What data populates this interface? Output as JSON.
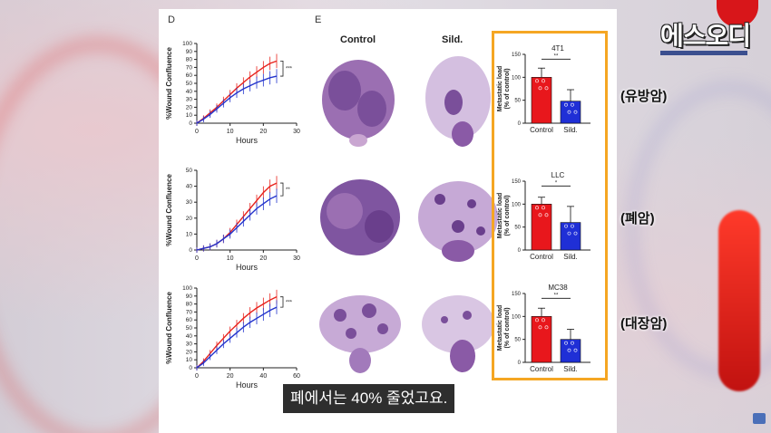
{
  "panels": {
    "d_letter": "D",
    "e_letter": "E"
  },
  "chart_data": [
    {
      "type": "line",
      "name_key": "4T1 wound",
      "xlabel": "Hours",
      "ylabel": "%Wound Confluence",
      "xlim": [
        0,
        30
      ],
      "ylim": [
        0,
        100
      ],
      "xticks": [
        0,
        10,
        20,
        30
      ],
      "yticks": [
        0,
        10,
        20,
        30,
        40,
        50,
        60,
        70,
        80,
        90,
        100
      ],
      "significance": "***",
      "series": [
        {
          "color": "#e8231d",
          "x": [
            0,
            2,
            4,
            6,
            8,
            10,
            12,
            14,
            16,
            18,
            20,
            22,
            24
          ],
          "y": [
            0,
            6,
            13,
            20,
            28,
            36,
            44,
            51,
            58,
            64,
            70,
            75,
            78
          ]
        },
        {
          "color": "#2233cc",
          "x": [
            0,
            2,
            4,
            6,
            8,
            10,
            12,
            14,
            16,
            18,
            20,
            22,
            24
          ],
          "y": [
            0,
            5,
            11,
            18,
            25,
            32,
            38,
            43,
            47,
            51,
            54,
            57,
            59
          ]
        }
      ]
    },
    {
      "type": "line",
      "xlabel": "Hours",
      "ylabel": "%Wound Confluence",
      "xlim": [
        0,
        30
      ],
      "ylim": [
        0,
        50
      ],
      "xticks": [
        0,
        10,
        20,
        30
      ],
      "yticks": [
        0,
        10,
        20,
        30,
        40,
        50
      ],
      "significance": "**",
      "series": [
        {
          "color": "#e8231d",
          "x": [
            0,
            2,
            4,
            6,
            8,
            10,
            12,
            14,
            16,
            18,
            20,
            22,
            24
          ],
          "y": [
            0,
            1,
            2,
            4,
            7,
            11,
            16,
            21,
            26,
            31,
            36,
            40,
            42
          ]
        },
        {
          "color": "#2233cc",
          "x": [
            0,
            2,
            4,
            6,
            8,
            10,
            12,
            14,
            16,
            18,
            20,
            22,
            24
          ],
          "y": [
            0,
            1,
            2,
            4,
            7,
            10,
            14,
            18,
            22,
            26,
            29,
            32,
            34
          ]
        }
      ]
    },
    {
      "type": "line",
      "xlabel": "Hours",
      "ylabel": "%Wound Confluence",
      "xlim": [
        0,
        60
      ],
      "ylim": [
        0,
        100
      ],
      "xticks": [
        0,
        20,
        40,
        60
      ],
      "yticks": [
        0,
        10,
        20,
        30,
        40,
        50,
        60,
        70,
        80,
        90,
        100
      ],
      "significance": "***",
      "series": [
        {
          "color": "#e8231d",
          "x": [
            0,
            4,
            8,
            12,
            16,
            20,
            24,
            28,
            32,
            36,
            40,
            44,
            48
          ],
          "y": [
            0,
            8,
            18,
            28,
            37,
            46,
            54,
            62,
            69,
            75,
            80,
            85,
            89
          ]
        },
        {
          "color": "#2233cc",
          "x": [
            0,
            4,
            8,
            12,
            16,
            20,
            24,
            28,
            32,
            36,
            40,
            44,
            48
          ],
          "y": [
            0,
            6,
            14,
            22,
            30,
            37,
            44,
            51,
            57,
            62,
            67,
            72,
            76
          ]
        }
      ]
    },
    {
      "type": "bar",
      "title": "4T1",
      "ylabel": "Metastatic load\n(% of control)",
      "categories": [
        "Control",
        "Sild."
      ],
      "values": [
        100,
        48
      ],
      "errors": [
        20,
        25
      ],
      "colors": [
        "#e8171c",
        "#1f2fd6"
      ],
      "ylim": [
        0,
        150
      ],
      "yticks": [
        0,
        50,
        100,
        150
      ],
      "significance": "**"
    },
    {
      "type": "bar",
      "title": "LLC",
      "ylabel": "Metastatic load\n(% of control)",
      "categories": [
        "Control",
        "Sild."
      ],
      "values": [
        100,
        60
      ],
      "errors": [
        15,
        35
      ],
      "colors": [
        "#e8171c",
        "#1f2fd6"
      ],
      "ylim": [
        0,
        150
      ],
      "yticks": [
        0,
        50,
        100,
        150
      ],
      "significance": "*"
    },
    {
      "type": "bar",
      "title": "MC38",
      "ylabel": "Metastatic load\n(% of control)",
      "categories": [
        "Control",
        "Sild."
      ],
      "values": [
        100,
        50
      ],
      "errors": [
        18,
        22
      ],
      "colors": [
        "#e8171c",
        "#1f2fd6"
      ],
      "ylim": [
        0,
        150
      ],
      "yticks": [
        0,
        50,
        100,
        150
      ],
      "significance": "**"
    }
  ],
  "columns": {
    "control": "Control",
    "sild": "Sild."
  },
  "cancer_labels": [
    "(유방암)",
    "(폐암)",
    "(대장암)"
  ],
  "logo": "에스오디",
  "subtitle": "폐에서는 40% 줄었고요.",
  "colors": {
    "accent_orange": "#f5a623",
    "red": "#e8231d",
    "blue": "#2233cc"
  }
}
